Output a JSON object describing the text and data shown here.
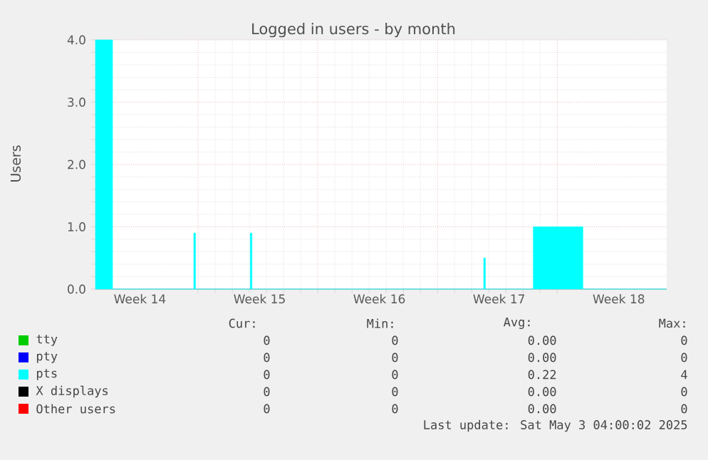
{
  "chart_data": {
    "type": "area",
    "title": "Logged in users - by month",
    "ylabel": "Users",
    "xlim": [
      "2025-04-01",
      "2025-05-04T09:36"
    ],
    "ylim": [
      0,
      4
    ],
    "xticks": [
      {
        "value": "2025-04-07",
        "label": null
      },
      {
        "value": "2025-04-14",
        "label": null
      },
      {
        "value": "2025-04-21",
        "label": null
      },
      {
        "value": "2025-04-28",
        "label": null
      },
      {
        "value": "2025-04-03T14:24",
        "label": "Week 14"
      },
      {
        "value": "2025-04-10T14:24",
        "label": "Week 15"
      },
      {
        "value": "2025-04-17T14:24",
        "label": "Week 16"
      },
      {
        "value": "2025-04-24T14:24",
        "label": "Week 17"
      },
      {
        "value": "2025-05-01T14:24",
        "label": "Week 18"
      }
    ],
    "yticks": [
      {
        "value": 0,
        "label": "0.0"
      },
      {
        "value": 1,
        "label": "1.0"
      },
      {
        "value": 2,
        "label": "2.0"
      },
      {
        "value": 3,
        "label": "3.0"
      },
      {
        "value": 4,
        "label": "4.0"
      }
    ],
    "grid": true,
    "legend": "bottom",
    "series": [
      {
        "name": "tty",
        "color": "#00cc00",
        "values": [
          null
        ]
      },
      {
        "name": "pty",
        "color": "#0000ff",
        "values": [
          null
        ]
      },
      {
        "name": "pts",
        "color": "#00ffff",
        "x": [
          "2025-04-01",
          "2025-04-02",
          "2025-04-02",
          "2025-04-06T18:00",
          "2025-04-06T18:00",
          "2025-04-06T20:24",
          "2025-04-06T20:24",
          "2025-04-10T01:12",
          "2025-04-10T01:12",
          "2025-04-10T03:36",
          "2025-04-10T03:36",
          "2025-04-23T16:48",
          "2025-04-23T16:48",
          "2025-04-23T19:12",
          "2025-04-23T19:12",
          "2025-04-26T14:24",
          "2025-04-26T14:24",
          "2025-04-29T12:00",
          "2025-04-29T12:00",
          "2025-05-04T09:36"
        ],
        "values": [
          4,
          4,
          0,
          0,
          0.9,
          0.9,
          0,
          0,
          0.9,
          0.9,
          0,
          0,
          0.5,
          0.5,
          0,
          0,
          1,
          1,
          0,
          0
        ]
      },
      {
        "name": "X displays",
        "color": "#000000",
        "values": [
          null
        ]
      },
      {
        "name": "Other users",
        "color": "#ff0000",
        "values": [
          null
        ]
      }
    ],
    "annotations": [
      "Cur:",
      "Min:",
      "Avg:",
      "Max:",
      "0",
      "0",
      "0.00",
      "0",
      "0",
      "0",
      "0.00",
      "0",
      "0",
      "0",
      "0.22",
      "4",
      "0",
      "0",
      "0.00",
      "0",
      "0",
      "0",
      "0.00",
      "0",
      "Last update: Sat May  3 04:00:02 2025"
    ]
  }
}
